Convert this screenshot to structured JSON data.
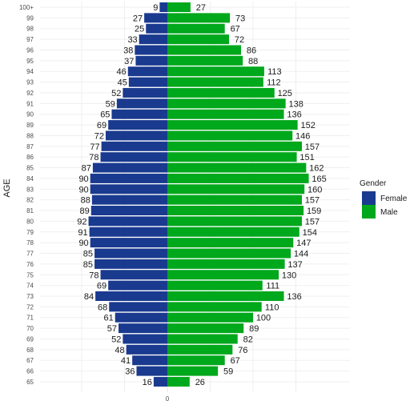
{
  "chart_data": {
    "type": "bar",
    "orientation": "horizontal-diverging",
    "title": "",
    "ylabel": "AGE",
    "xlabel": "",
    "x_tick_label": "0",
    "grid": true,
    "legend_position": "right",
    "legend_title": "Gender",
    "colors": {
      "Female": "#1a3a8f",
      "Male": "#00a81c"
    },
    "categories": [
      "100+",
      "99",
      "98",
      "97",
      "96",
      "95",
      "94",
      "93",
      "92",
      "91",
      "90",
      "89",
      "88",
      "87",
      "86",
      "85",
      "84",
      "83",
      "82",
      "81",
      "80",
      "79",
      "78",
      "77",
      "76",
      "75",
      "74",
      "73",
      "72",
      "71",
      "70",
      "69",
      "68",
      "67",
      "66",
      "65"
    ],
    "series": [
      {
        "name": "Female",
        "values": [
          9,
          27,
          25,
          33,
          38,
          37,
          46,
          45,
          52,
          59,
          65,
          69,
          72,
          77,
          78,
          87,
          90,
          90,
          88,
          89,
          92,
          91,
          90,
          85,
          85,
          78,
          69,
          84,
          68,
          61,
          57,
          52,
          48,
          41,
          36,
          16
        ]
      },
      {
        "name": "Male",
        "values": [
          27,
          73,
          67,
          72,
          86,
          88,
          113,
          112,
          125,
          138,
          136,
          152,
          146,
          157,
          151,
          162,
          165,
          160,
          157,
          159,
          157,
          154,
          147,
          144,
          137,
          130,
          111,
          136,
          110,
          100,
          89,
          82,
          76,
          67,
          59,
          26
        ]
      }
    ]
  }
}
